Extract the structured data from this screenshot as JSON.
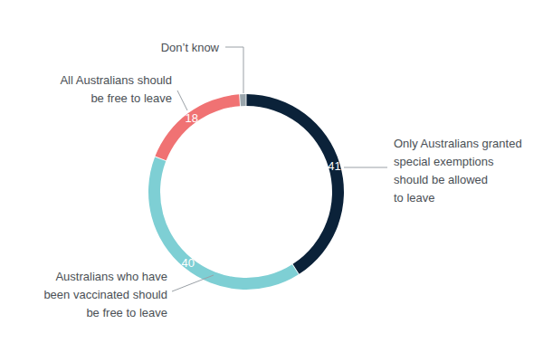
{
  "chart_data": {
    "type": "donut",
    "categories": [
      "Only Australians granted special exemptions should be allowed to leave",
      "Australians who have been vaccinated should be free to leave",
      "All Australians should be free to leave",
      "Don’t know"
    ],
    "values": [
      41,
      40,
      18,
      1
    ],
    "value_labels": [
      "41",
      "40",
      "18",
      null
    ],
    "colors": [
      "#0b2239",
      "#7ecfd4",
      "#f07273",
      "#9aa6ad"
    ],
    "data_labels": true
  }
}
